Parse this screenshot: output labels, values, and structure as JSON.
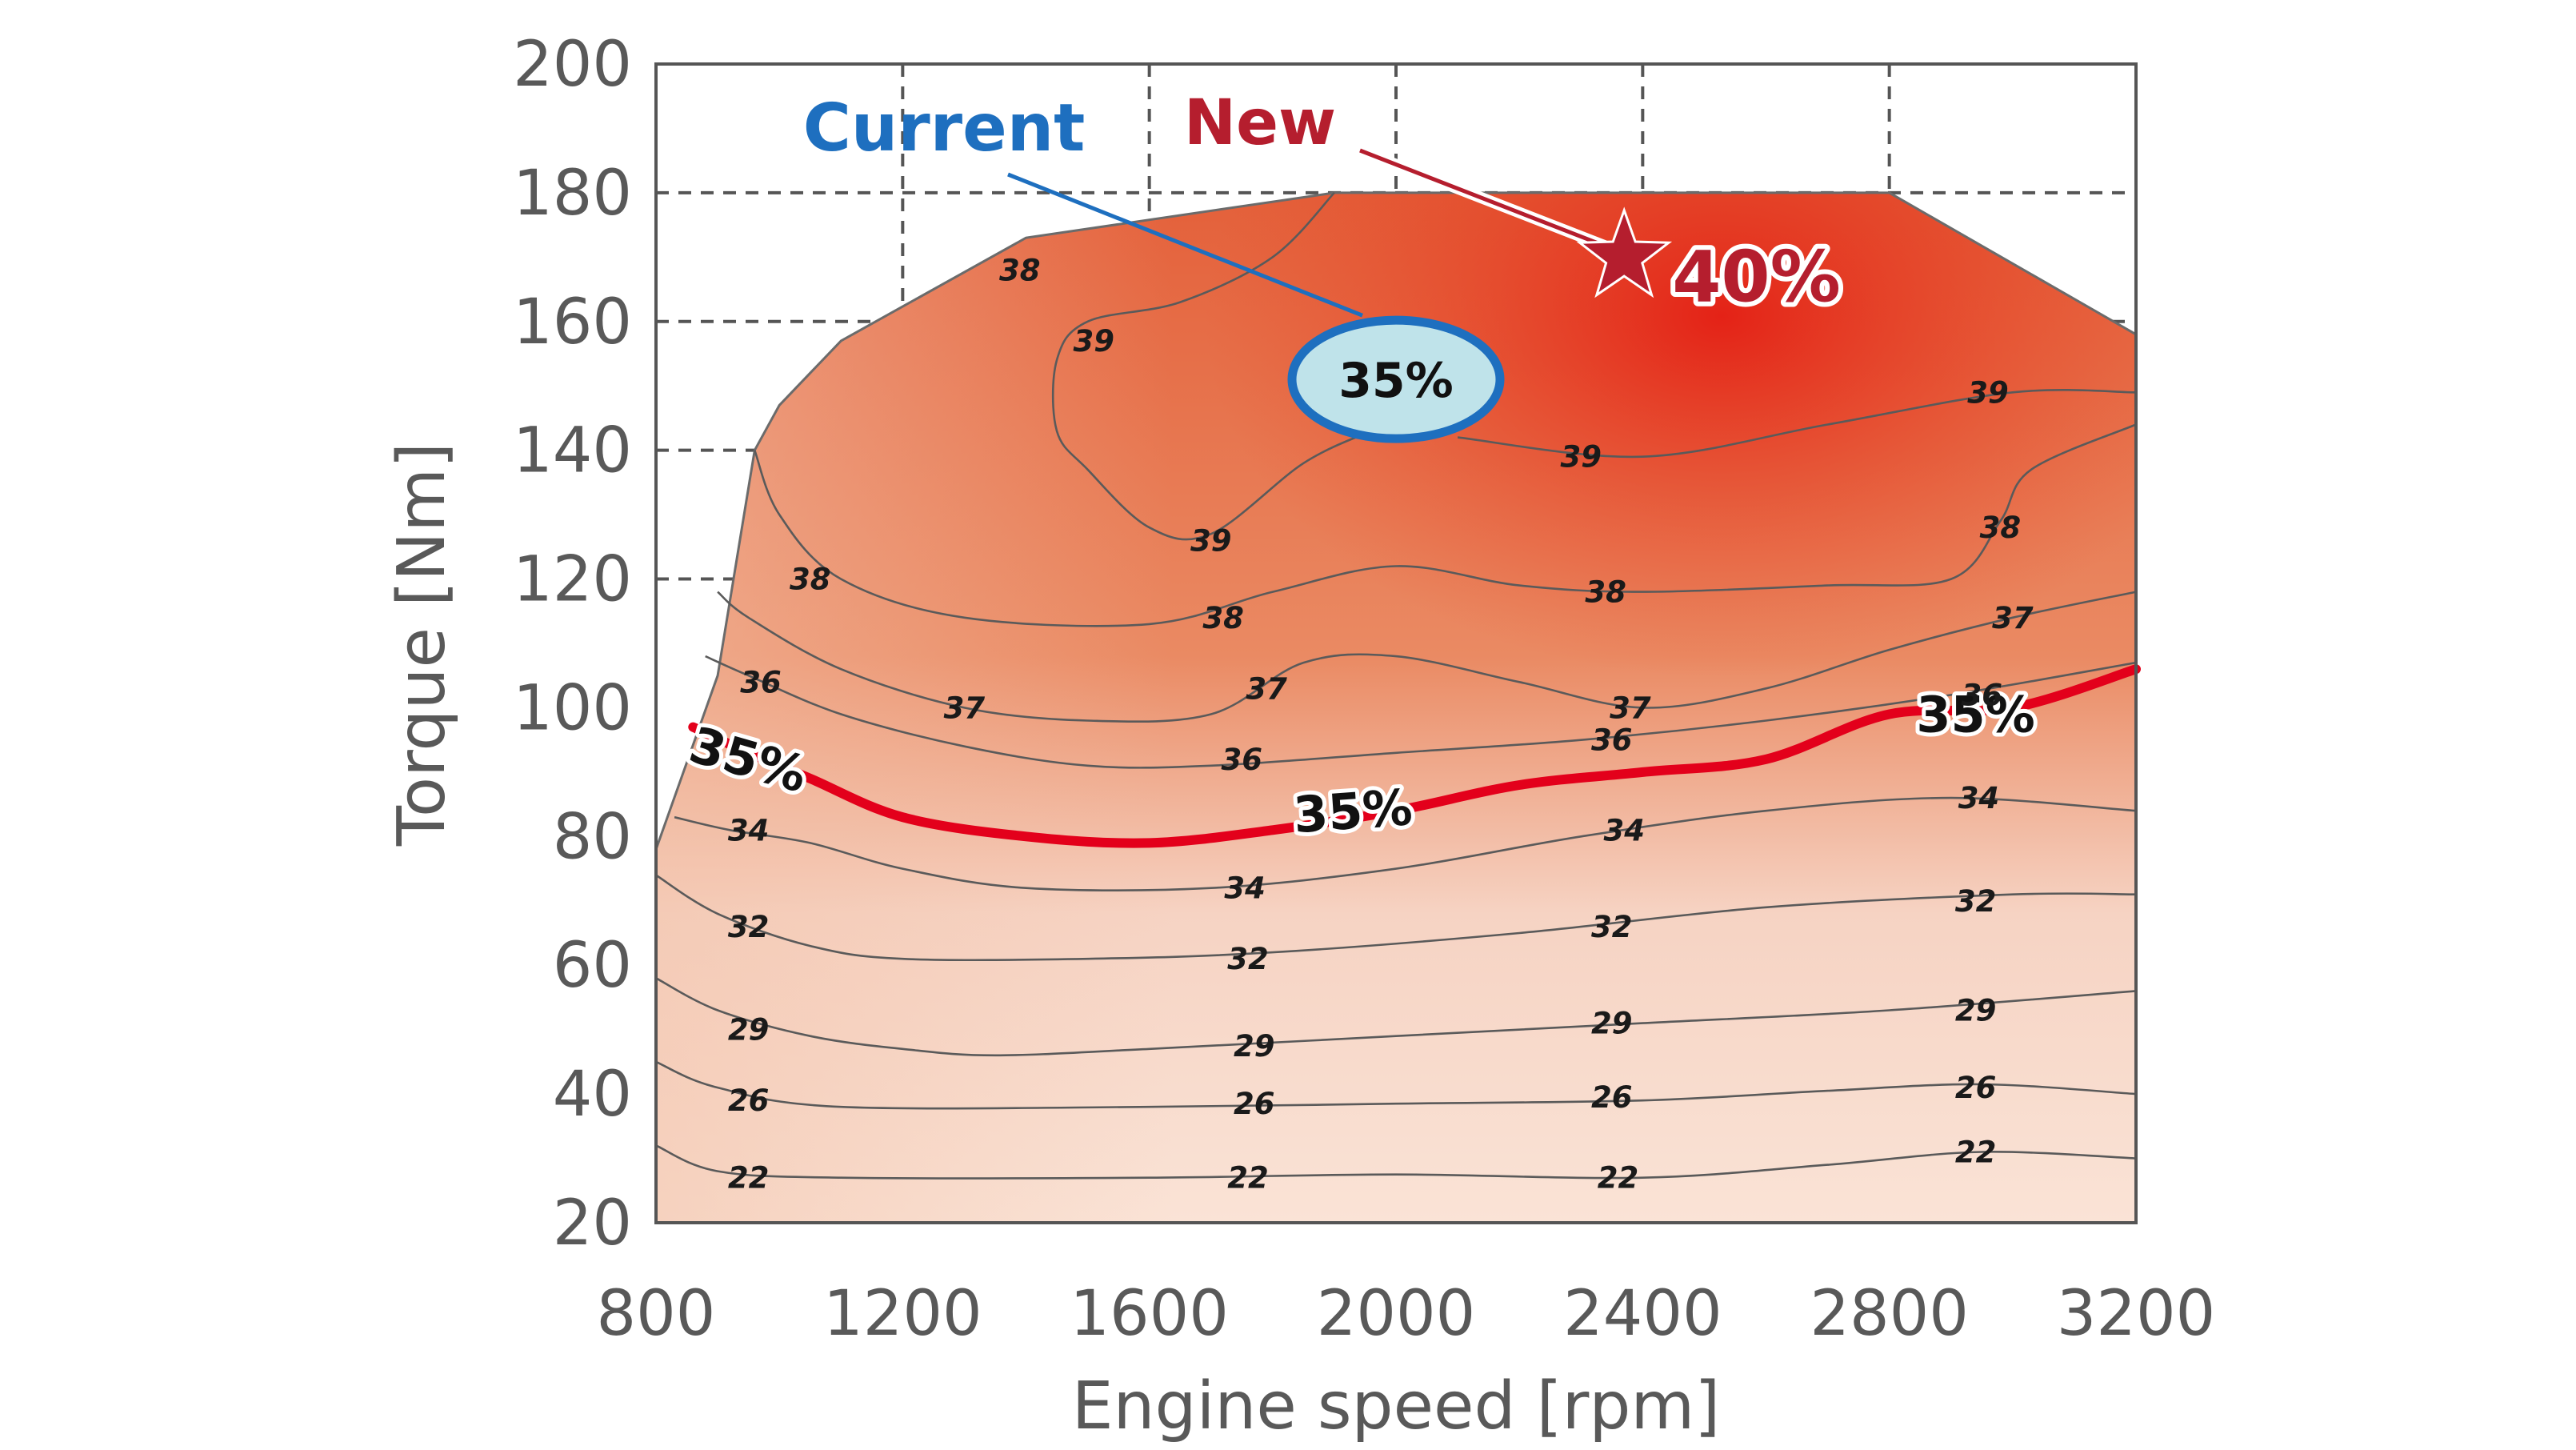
{
  "chart_data": {
    "type": "contour",
    "xlabel": "Engine speed [rpm]",
    "ylabel": "Torque [Nm]",
    "xlim": [
      800,
      3200
    ],
    "ylim": [
      20,
      200
    ],
    "x_ticks": [
      "800",
      "1200",
      "1600",
      "2000",
      "2400",
      "2800",
      "3200"
    ],
    "y_ticks": [
      "20",
      "40",
      "60",
      "80",
      "100",
      "120",
      "140",
      "160",
      "180",
      "200"
    ],
    "dashed_grid": {
      "x": [
        1200,
        1600,
        2000,
        2400,
        2800
      ],
      "y": [
        120,
        140,
        160,
        180
      ]
    },
    "operating_boundary": [
      [
        800,
        78
      ],
      [
        900,
        105
      ],
      [
        960,
        140
      ],
      [
        1000,
        147
      ],
      [
        1100,
        157
      ],
      [
        1400,
        173
      ],
      [
        1900,
        180
      ],
      [
        2800,
        180
      ],
      [
        3200,
        158
      ]
    ],
    "contours": [
      {
        "value": "22",
        "labels": [
          [
            950,
            27
          ],
          [
            1760,
            27
          ],
          [
            2360,
            27
          ],
          [
            2940,
            31
          ]
        ],
        "points": [
          [
            800,
            32
          ],
          [
            900,
            28
          ],
          [
            1100,
            27
          ],
          [
            1600,
            27
          ],
          [
            2000,
            27.5
          ],
          [
            2400,
            27
          ],
          [
            2700,
            29
          ],
          [
            2950,
            31
          ],
          [
            3200,
            30
          ]
        ]
      },
      {
        "value": "26",
        "labels": [
          [
            950,
            39
          ],
          [
            1770,
            38.5
          ],
          [
            2350,
            39.5
          ],
          [
            2940,
            41
          ]
        ],
        "points": [
          [
            800,
            45
          ],
          [
            900,
            41
          ],
          [
            1100,
            38
          ],
          [
            1600,
            38
          ],
          [
            2000,
            38.5
          ],
          [
            2400,
            39
          ],
          [
            2700,
            40.5
          ],
          [
            2950,
            41.5
          ],
          [
            3200,
            40
          ]
        ]
      },
      {
        "value": "29",
        "labels": [
          [
            950,
            50
          ],
          [
            1770,
            47.5
          ],
          [
            2350,
            51
          ],
          [
            2940,
            53
          ]
        ],
        "points": [
          [
            800,
            58
          ],
          [
            900,
            53
          ],
          [
            1050,
            49
          ],
          [
            1200,
            47
          ],
          [
            1350,
            46
          ],
          [
            1600,
            47
          ],
          [
            2000,
            49
          ],
          [
            2400,
            51
          ],
          [
            2800,
            53
          ],
          [
            3200,
            56
          ]
        ]
      },
      {
        "value": "32",
        "labels": [
          [
            950,
            66
          ],
          [
            1760,
            61
          ],
          [
            2350,
            66
          ],
          [
            2940,
            70
          ]
        ],
        "points": [
          [
            800,
            74
          ],
          [
            900,
            68
          ],
          [
            1050,
            63
          ],
          [
            1200,
            61
          ],
          [
            1500,
            61
          ],
          [
            1800,
            62
          ],
          [
            2200,
            65
          ],
          [
            2600,
            69
          ],
          [
            3000,
            71
          ],
          [
            3200,
            71
          ]
        ]
      },
      {
        "value": "34",
        "labels": [
          [
            950,
            81
          ],
          [
            1755,
            72
          ],
          [
            2370,
            81
          ],
          [
            2945,
            86
          ]
        ],
        "points": [
          [
            830,
            83
          ],
          [
            920,
            81
          ],
          [
            1050,
            79
          ],
          [
            1200,
            75
          ],
          [
            1400,
            72
          ],
          [
            1700,
            72
          ],
          [
            2000,
            75
          ],
          [
            2300,
            80
          ],
          [
            2600,
            84
          ],
          [
            2900,
            86
          ],
          [
            3200,
            84
          ]
        ]
      },
      {
        "value": "36",
        "labels": [
          [
            970,
            104
          ],
          [
            1750,
            92
          ],
          [
            2350,
            95
          ],
          [
            2950,
            102
          ]
        ],
        "points": [
          [
            880,
            108
          ],
          [
            950,
            105
          ],
          [
            1100,
            99
          ],
          [
            1300,
            94
          ],
          [
            1500,
            91
          ],
          [
            1700,
            91
          ],
          [
            2000,
            93
          ],
          [
            2300,
            95
          ],
          [
            2600,
            98
          ],
          [
            2900,
            102
          ],
          [
            3200,
            107
          ]
        ]
      },
      {
        "value": "37",
        "labels": [
          [
            1300,
            100
          ],
          [
            1790,
            103
          ],
          [
            2380,
            100
          ],
          [
            3000,
            114
          ]
        ],
        "points": [
          [
            900,
            118
          ],
          [
            950,
            114
          ],
          [
            1100,
            106
          ],
          [
            1300,
            100
          ],
          [
            1500,
            98
          ],
          [
            1700,
            99
          ],
          [
            1850,
            107
          ],
          [
            2000,
            108
          ],
          [
            2200,
            104
          ],
          [
            2400,
            100
          ],
          [
            2600,
            103
          ],
          [
            2800,
            109
          ],
          [
            3000,
            114
          ],
          [
            3200,
            118
          ]
        ]
      },
      {
        "value": "38",
        "labels": [
          [
            1050,
            120
          ],
          [
            1720,
            114
          ],
          [
            2340,
            118
          ],
          [
            2980,
            128
          ],
          [
            1390,
            168
          ]
        ],
        "points": [
          [
            960,
            140
          ],
          [
            1000,
            130
          ],
          [
            1100,
            120
          ],
          [
            1300,
            114
          ],
          [
            1600,
            113
          ],
          [
            1800,
            118
          ],
          [
            2000,
            122
          ],
          [
            2200,
            119
          ],
          [
            2400,
            118
          ],
          [
            2700,
            119
          ],
          [
            2900,
            120
          ],
          [
            2980,
            129
          ],
          [
            3030,
            137
          ],
          [
            3200,
            144
          ]
        ]
      },
      {
        "value": "39",
        "labels": [
          [
            1700,
            126
          ],
          [
            1510,
            157
          ],
          [
            2300,
            139
          ],
          [
            2960,
            149
          ]
        ],
        "points": [
          [
            1960,
            143
          ],
          [
            1850,
            138
          ],
          [
            1700,
            127
          ],
          [
            1600,
            128
          ],
          [
            1500,
            137
          ],
          [
            1450,
            143
          ],
          [
            1450,
            154
          ],
          [
            1500,
            160
          ],
          [
            1650,
            163
          ],
          [
            1800,
            170
          ],
          [
            1900,
            180
          ]
        ],
        "points2": [
          [
            2100,
            142
          ],
          [
            2400,
            139
          ],
          [
            2700,
            144
          ],
          [
            3000,
            149
          ],
          [
            3200,
            149
          ]
        ]
      }
    ],
    "line_35": {
      "label": "35%",
      "color": "#e3001b",
      "labels": [
        [
          950,
          92
        ],
        [
          1930,
          84
        ],
        [
          2940,
          99
        ]
      ],
      "points": [
        [
          860,
          97
        ],
        [
          950,
          93
        ],
        [
          1050,
          89
        ],
        [
          1200,
          83
        ],
        [
          1400,
          80
        ],
        [
          1600,
          79
        ],
        [
          1800,
          81
        ],
        [
          2000,
          84
        ],
        [
          2200,
          88
        ],
        [
          2400,
          90
        ],
        [
          2600,
          92
        ],
        [
          2800,
          99
        ],
        [
          3000,
          100
        ],
        [
          3200,
          106
        ]
      ]
    },
    "current": {
      "label": "Current",
      "value": "35%",
      "center": [
        2000,
        151
      ],
      "color": "#1e6fbf"
    },
    "new": {
      "label": "New",
      "value": "40%",
      "point": [
        2370,
        170
      ],
      "color": "#b51e2e"
    }
  }
}
